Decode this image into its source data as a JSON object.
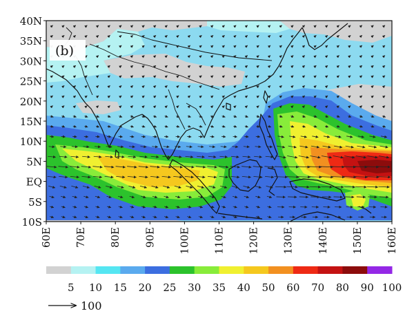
{
  "panel_label": "(b)",
  "lat_ticks": [
    "40N",
    "35N",
    "30N",
    "25N",
    "20N",
    "15N",
    "10N",
    "5N",
    "EQ",
    "5S",
    "10S"
  ],
  "lon_ticks": [
    "60E",
    "70E",
    "80E",
    "90E",
    "100E",
    "110E",
    "120E",
    "130E",
    "140E",
    "150E",
    "160E"
  ],
  "legend": {
    "labels": [
      "5",
      "10",
      "15",
      "20",
      "25",
      "30",
      "35",
      "40",
      "50",
      "60",
      "70",
      "80",
      "90",
      "100"
    ],
    "colors": [
      "#d2d2d2",
      "#b5f2f2",
      "#55e6f2",
      "#5aaaee",
      "#3c6ee0",
      "#2cc22c",
      "#88ec3a",
      "#f0f030",
      "#f5c81e",
      "#f29020",
      "#ee2a14",
      "#c41212",
      "#8c0c0c",
      "#9428e6"
    ]
  },
  "reference_vector": {
    "label": "100"
  },
  "map": {
    "lon_range": [
      60,
      160
    ],
    "lat_range": [
      -10,
      40
    ],
    "background_color": "#8cdaf0"
  }
}
